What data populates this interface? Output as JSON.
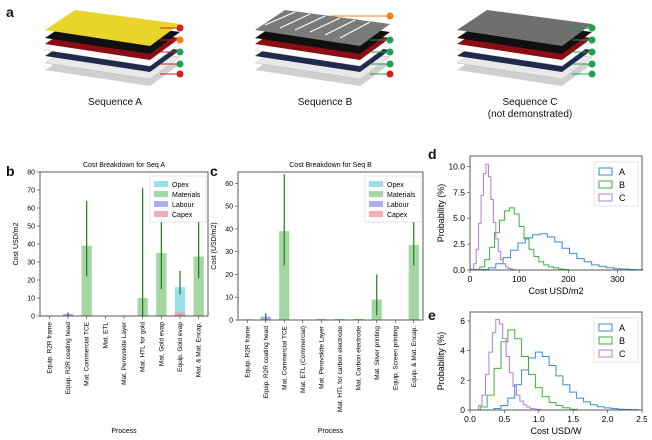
{
  "panel_letters": {
    "a": "a",
    "b": "b",
    "c": "c",
    "d": "d",
    "e": "e"
  },
  "sequences": {
    "a": {
      "label": "Sequence A",
      "sublabel": ""
    },
    "b": {
      "label": "Sequence B",
      "sublabel": ""
    },
    "c": {
      "label": "Sequence C",
      "sublabel": "(not demonstrated)"
    }
  },
  "colors": {
    "opex": "#7fd8e2",
    "materials": "#8ccc8c",
    "labour": "#9a9af0",
    "capex": "#f29a9a",
    "A": "#3d8ad0",
    "B": "#3cb23c",
    "C": "#b27be0"
  },
  "chart_data": [
    {
      "id": "b",
      "type": "bar",
      "title": "Cost Breakdown for Seq A",
      "xlabel": "Process",
      "ylabel": "Cost USD/m2",
      "ylim": [
        0,
        80
      ],
      "yticks": [
        0,
        10,
        20,
        30,
        40,
        50,
        60,
        70,
        80
      ],
      "legend": [
        "Opex",
        "Materials",
        "Labour",
        "Capex"
      ],
      "categories": [
        "Equip. R2R frame",
        "Equip. R2R coating head",
        "Mat. Commercial TCE",
        "Mat. ETL",
        "Mat. Perovskite Layer",
        "Mat. HTL for gold",
        "Mat. Gold evap",
        "Equip. Gold evap",
        "Mat. & Mat. Encap."
      ],
      "series": [
        {
          "name": "Opex",
          "values": [
            0,
            0,
            0,
            0,
            0,
            0,
            0,
            16,
            0
          ]
        },
        {
          "name": "Materials",
          "values": [
            0,
            0,
            39,
            0,
            0,
            10,
            35,
            0,
            33
          ]
        },
        {
          "name": "Labour",
          "values": [
            0.3,
            1.2,
            0,
            0,
            0,
            0,
            0,
            1,
            0
          ]
        },
        {
          "name": "Capex",
          "values": [
            0.2,
            0.3,
            0,
            0,
            0,
            0,
            0,
            2,
            0
          ]
        }
      ],
      "error_bars": [
        null,
        [
          0,
          2
        ],
        [
          22,
          64
        ],
        null,
        null,
        [
          0,
          71
        ],
        [
          15,
          63
        ],
        [
          12,
          25
        ],
        [
          21,
          59
        ]
      ]
    },
    {
      "id": "c",
      "type": "bar",
      "title": "Cost Breakdown for Seq B",
      "xlabel": "Process",
      "ylabel": "Cost (USD/m2)",
      "ylim": [
        0,
        65
      ],
      "yticks": [
        0,
        10,
        20,
        30,
        40,
        50,
        60
      ],
      "legend": [
        "Opex",
        "Materials",
        "Labour",
        "Capex"
      ],
      "categories": [
        "Equip. R2R frame",
        "Equip. R2R coating head",
        "Mat. Commercial TCE",
        "Mat. ETL (Commercial)",
        "Mat. Perovskite Layer",
        "Mat. HTL for carbon electrode",
        "Mat. Carbon electrode",
        "Mat. Silver printing",
        "Equip. Screen printing",
        "Equip. & Mat. Encap."
      ],
      "series": [
        {
          "name": "Opex",
          "values": [
            0,
            0,
            0,
            0,
            0,
            0,
            0,
            0,
            0,
            0
          ]
        },
        {
          "name": "Materials",
          "values": [
            0,
            0,
            39,
            0,
            0.5,
            0.5,
            0.5,
            9,
            0,
            33
          ]
        },
        {
          "name": "Labour",
          "values": [
            0.3,
            1.5,
            0,
            0,
            0,
            0,
            0,
            0,
            0.2,
            0
          ]
        },
        {
          "name": "Capex",
          "values": [
            0.2,
            0.3,
            0,
            0,
            0,
            0,
            0,
            0,
            0.1,
            0
          ]
        }
      ],
      "error_bars": [
        null,
        [
          0,
          3
        ],
        [
          24,
          64
        ],
        null,
        null,
        null,
        null,
        [
          2,
          20
        ],
        null,
        [
          24,
          44
        ]
      ]
    },
    {
      "id": "d",
      "type": "line",
      "subtype": "step-histogram",
      "xlabel": "Cost USD/m2",
      "ylabel": "Probability (%)",
      "xlim": [
        0,
        350
      ],
      "ylim": [
        0,
        11
      ],
      "xticks": [
        0,
        100,
        200,
        300
      ],
      "yticks": [
        0,
        2.5,
        5.0,
        7.5,
        10.0
      ],
      "legend_position": "top-right",
      "series": [
        {
          "name": "A",
          "x": [
            30,
            45,
            60,
            75,
            90,
            105,
            120,
            135,
            150,
            165,
            180,
            195,
            210,
            225,
            240,
            255,
            270,
            285,
            300,
            315,
            330,
            345
          ],
          "y": [
            0.05,
            0.2,
            0.6,
            1.2,
            1.9,
            2.6,
            3.1,
            3.4,
            3.5,
            3.2,
            2.7,
            2.1,
            1.6,
            1.1,
            0.8,
            0.5,
            0.35,
            0.22,
            0.12,
            0.08,
            0.05,
            0.03
          ]
        },
        {
          "name": "B",
          "x": [
            15,
            25,
            35,
            45,
            55,
            65,
            75,
            85,
            95,
            105,
            115,
            125,
            135,
            145,
            155,
            165,
            175,
            185,
            195
          ],
          "y": [
            0.05,
            0.3,
            1.0,
            2.2,
            3.6,
            4.8,
            5.7,
            6.0,
            5.4,
            4.2,
            3.0,
            2.0,
            1.3,
            0.8,
            0.5,
            0.3,
            0.2,
            0.1,
            0.05
          ]
        },
        {
          "name": "C",
          "x": [
            5,
            10,
            15,
            20,
            25,
            30,
            35,
            40,
            45,
            50,
            55,
            60,
            65,
            70,
            75,
            80,
            85,
            90
          ],
          "y": [
            0.1,
            0.6,
            2.0,
            4.5,
            7.2,
            9.3,
            10.2,
            9.0,
            6.8,
            4.6,
            3.0,
            1.8,
            1.0,
            0.6,
            0.3,
            0.15,
            0.08,
            0.03
          ]
        }
      ]
    },
    {
      "id": "e",
      "type": "line",
      "subtype": "step-histogram",
      "xlabel": "Cost USD/W",
      "ylabel": "Probability (%)",
      "xlim": [
        0,
        2.5
      ],
      "ylim": [
        0,
        6.6
      ],
      "xticks": [
        0.0,
        0.5,
        1.0,
        1.5,
        2.0,
        2.5
      ],
      "yticks": [
        0,
        2,
        4,
        6
      ],
      "legend_position": "top-right",
      "series": [
        {
          "name": "A",
          "x": [
            0.4,
            0.5,
            0.6,
            0.7,
            0.8,
            0.9,
            1.0,
            1.1,
            1.2,
            1.3,
            1.4,
            1.5,
            1.6,
            1.7,
            1.8,
            1.9,
            2.0,
            2.1,
            2.2,
            2.3,
            2.4
          ],
          "y": [
            0.1,
            0.3,
            0.8,
            1.7,
            2.7,
            3.5,
            3.9,
            3.6,
            3.0,
            2.3,
            1.7,
            1.2,
            0.8,
            0.55,
            0.35,
            0.22,
            0.14,
            0.09,
            0.05,
            0.03,
            0.02
          ]
        },
        {
          "name": "B",
          "x": [
            0.2,
            0.3,
            0.4,
            0.5,
            0.6,
            0.7,
            0.8,
            0.9,
            1.0,
            1.1,
            1.2,
            1.3,
            1.4,
            1.5
          ],
          "y": [
            0.2,
            1.0,
            2.8,
            4.6,
            5.4,
            4.8,
            3.6,
            2.4,
            1.5,
            0.9,
            0.5,
            0.3,
            0.15,
            0.05
          ]
        },
        {
          "name": "C",
          "x": [
            0.15,
            0.2,
            0.25,
            0.3,
            0.35,
            0.4,
            0.45,
            0.5,
            0.55,
            0.6,
            0.65,
            0.7,
            0.75,
            0.8,
            0.85,
            0.9,
            1.0
          ],
          "y": [
            0.3,
            1.0,
            2.4,
            3.9,
            5.2,
            6.1,
            5.8,
            4.8,
            3.6,
            2.5,
            1.6,
            1.0,
            0.6,
            0.35,
            0.2,
            0.1,
            0.04
          ]
        }
      ]
    }
  ]
}
